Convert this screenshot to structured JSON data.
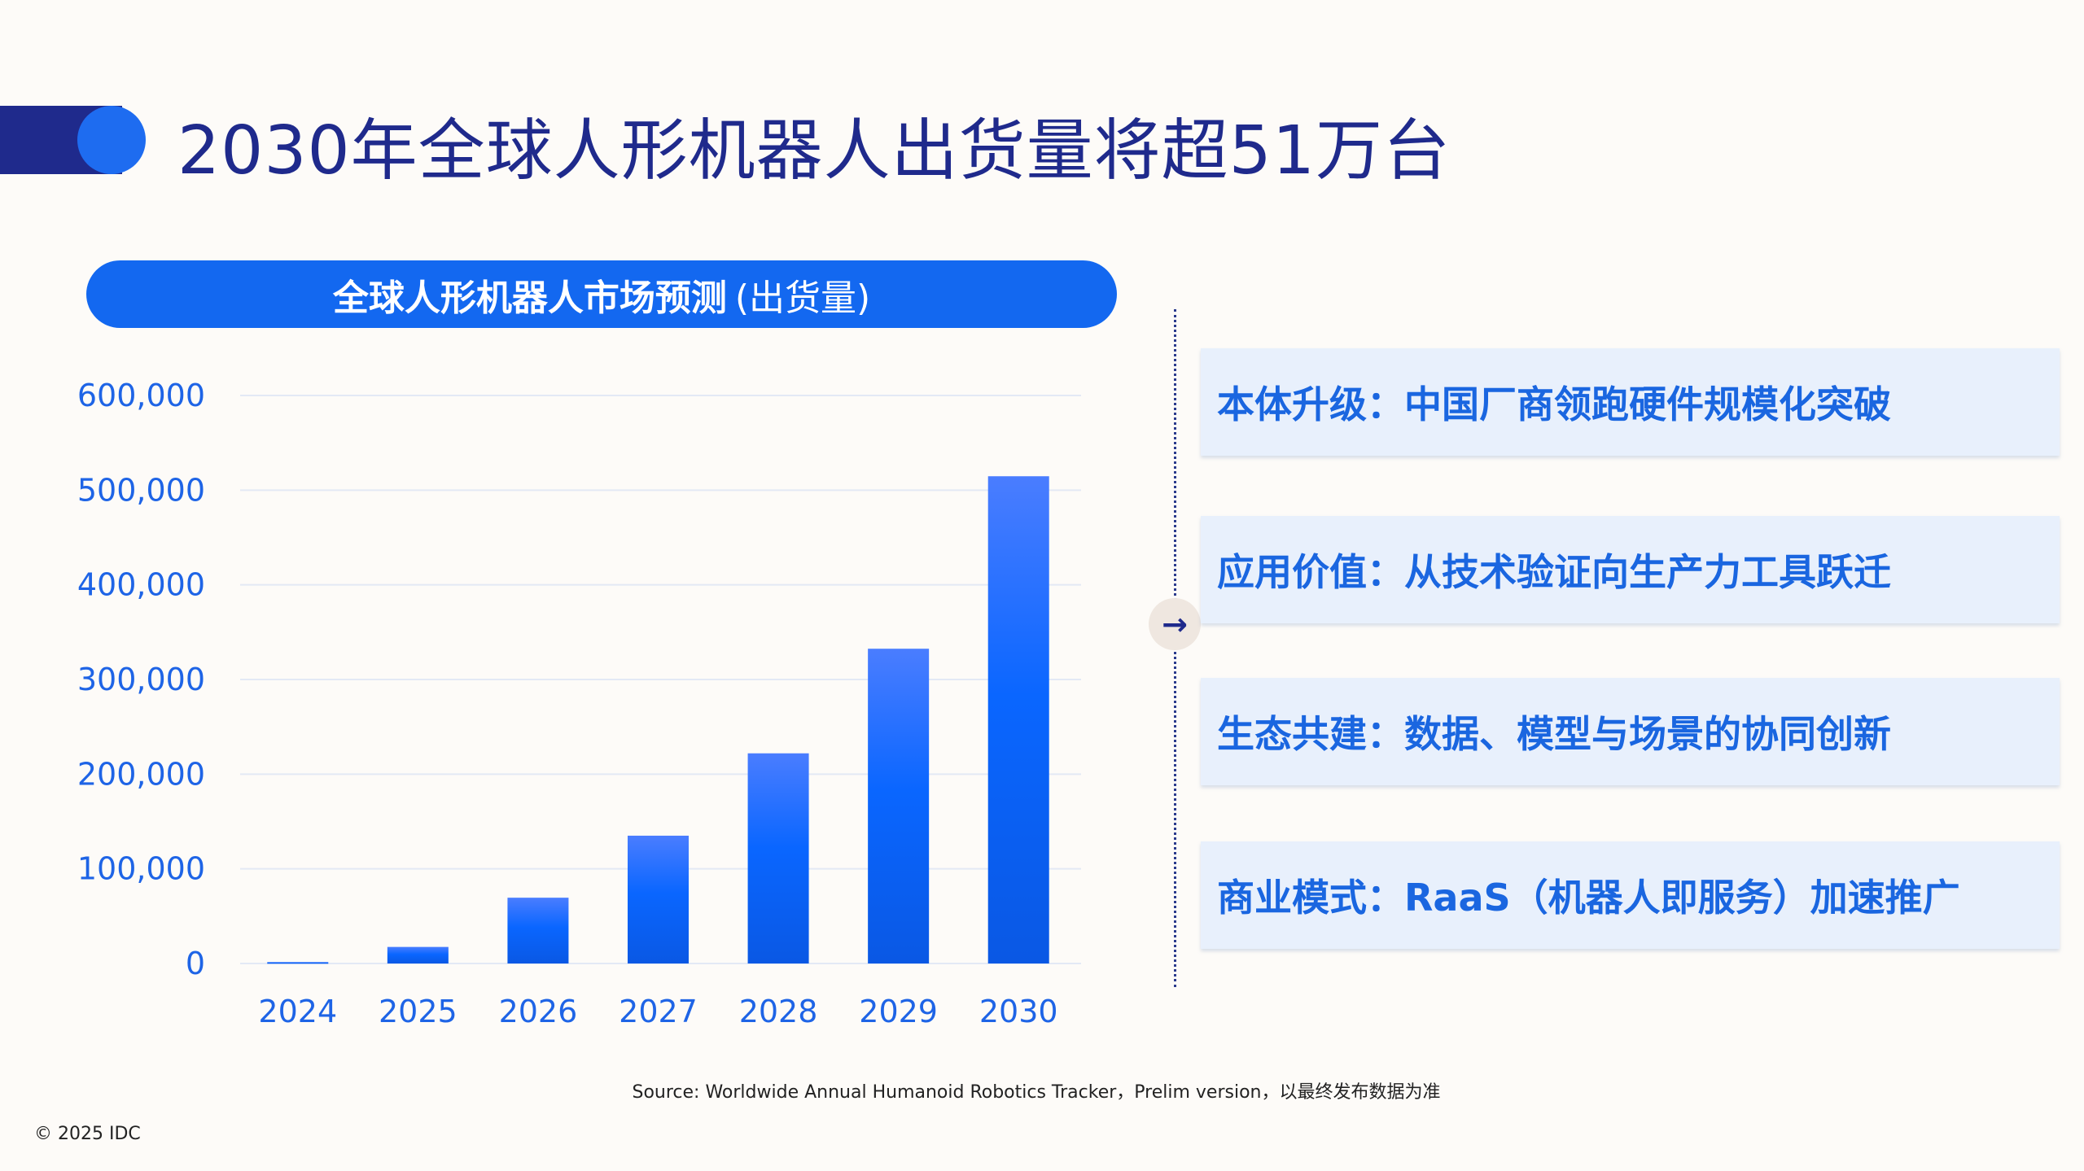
{
  "title": "2030年全球人形机器人出货量将超51万台",
  "chart_header": {
    "main": "全球人形机器人市场预测",
    "sub": "(出货量)"
  },
  "chart_data": {
    "type": "bar",
    "title": "全球人形机器人市场预测 (出货量)",
    "categories": [
      "2024",
      "2025",
      "2026",
      "2027",
      "2028",
      "2029",
      "2030"
    ],
    "values": [
      1500,
      17500,
      69500,
      135000,
      222000,
      332500,
      514700
    ],
    "ylim": [
      0,
      600000
    ],
    "yticks": [
      "0",
      "100,000",
      "200,000",
      "300,000",
      "400,000",
      "500,000",
      "600,000"
    ],
    "grid": true,
    "xlabel": "",
    "ylabel": "",
    "colors": {
      "bar_top": "#4a7dff",
      "bar_bottom": "#0a58e4",
      "grid": "#e3e9f5",
      "axis_text": "#1e64e6"
    }
  },
  "cards": [
    "本体升级：中国厂商领跑硬件规模化突破",
    "应用价值：从技术验证向生产力工具跃迁",
    "生态共建：数据、模型与场景的协同创新",
    "商业模式：RaaS（机器人即服务）加速推广"
  ],
  "arrow_icon": "arrow-right",
  "source": "Source: Worldwide Annual Humanoid Robotics Tracker，Prelim version，以最终发布数据为准",
  "copyright": "© 2025 IDC",
  "colors": {
    "navy": "#1f2a8c",
    "accent": "#1368f0",
    "card_bg": "#e8f0fc",
    "card_text": "#1a66e0"
  }
}
